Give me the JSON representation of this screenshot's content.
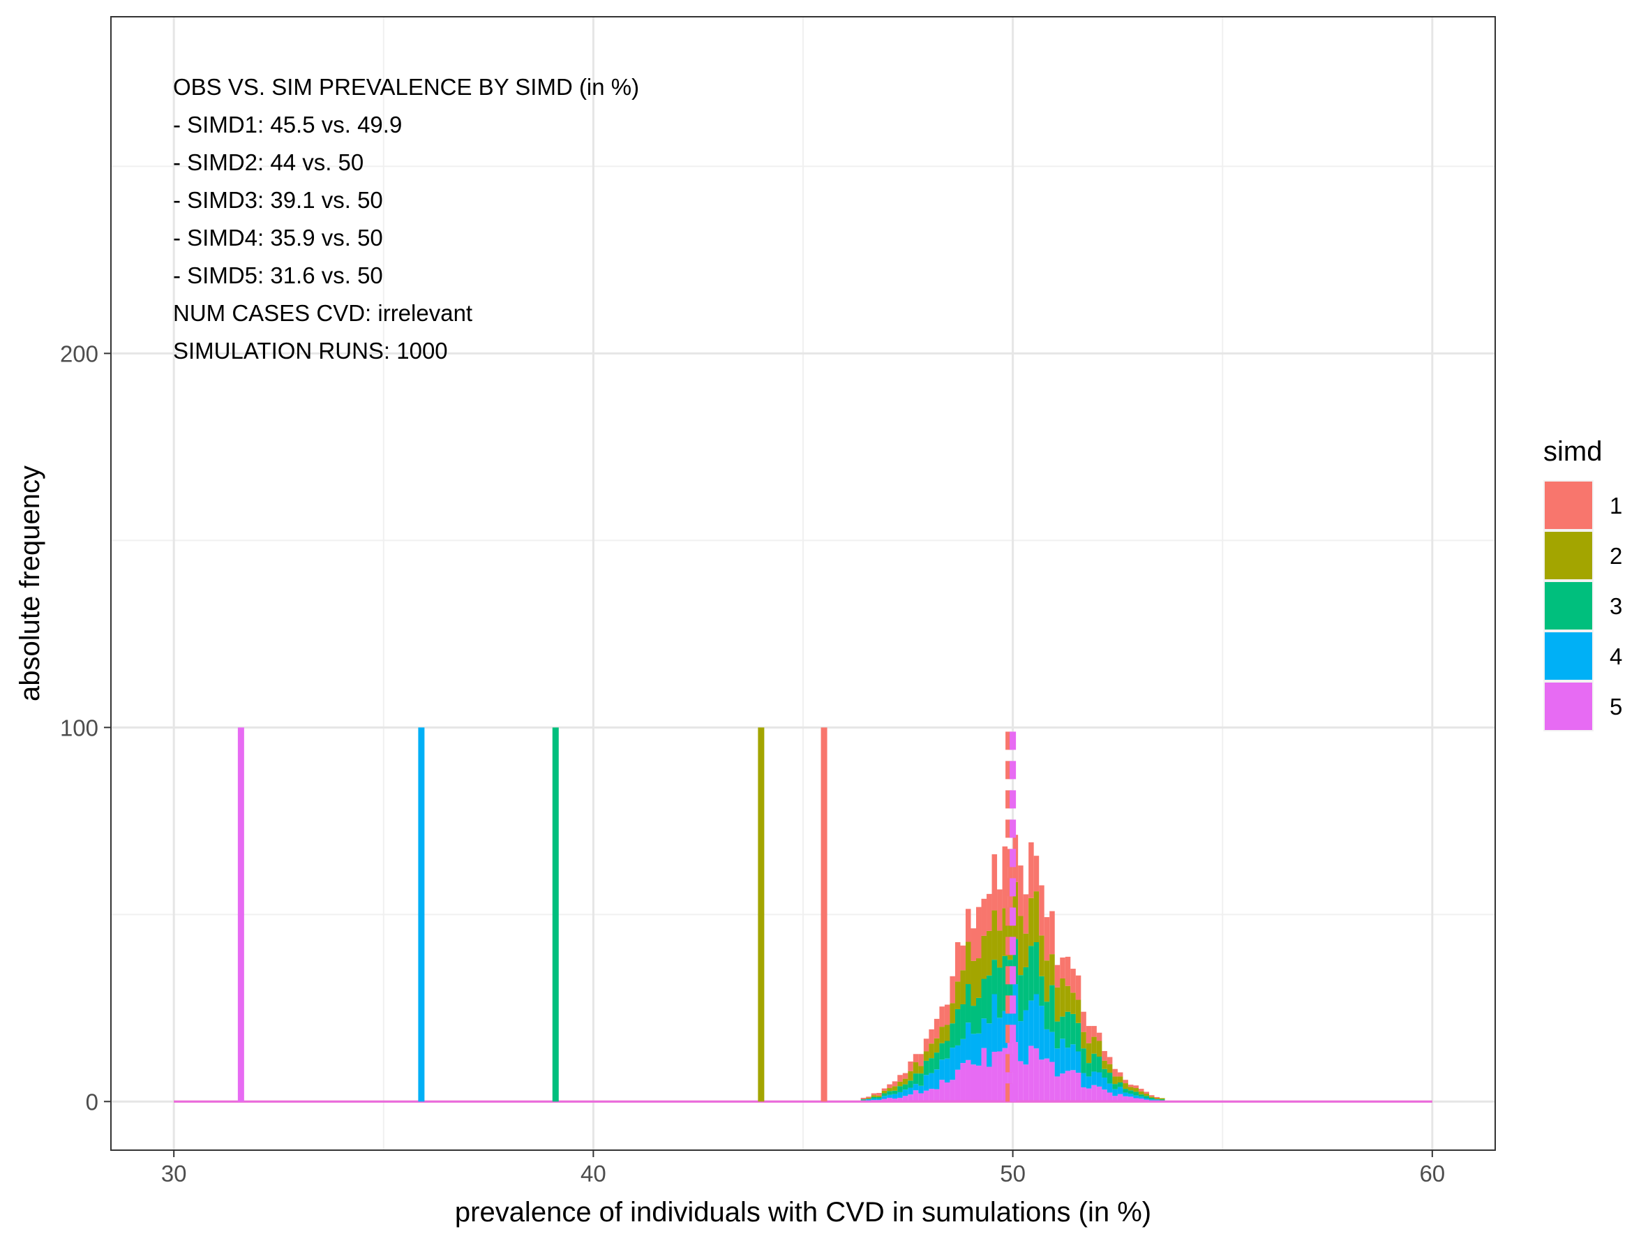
{
  "chart_data": {
    "type": "histogram",
    "xlabel": "prevalence of individuals with CVD in sumulations (in %)",
    "ylabel": "absolute frequency",
    "xlim": [
      28.5,
      61.5
    ],
    "ylim": [
      -13,
      290
    ],
    "x_ticks": [
      30,
      40,
      50,
      60
    ],
    "x_minor_ticks": [
      35,
      45,
      55
    ],
    "y_ticks": [
      0,
      100,
      200
    ],
    "y_minor_ticks": [
      50,
      150,
      250
    ],
    "grid": true,
    "stacked": true,
    "bin_width": 0.125,
    "bin_range": [
      30,
      60
    ],
    "annotations": [
      "OBS VS. SIM PREVALENCE BY SIMD (in %)",
      "- SIMD1: 45.5 vs. 49.9",
      "- SIMD2: 44 vs. 50",
      "- SIMD3: 39.1 vs. 50",
      "- SIMD4: 35.9 vs. 50",
      "- SIMD5: 31.6 vs. 50",
      "NUM CASES CVD: irrelevant",
      "SIMULATION RUNS: 1000"
    ],
    "legend": {
      "title": "simd",
      "position": "right",
      "entries": [
        {
          "label": "1",
          "color": "#F8766D"
        },
        {
          "label": "2",
          "color": "#A3A500"
        },
        {
          "label": "3",
          "color": "#00BF7D"
        },
        {
          "label": "4",
          "color": "#00B0F6"
        },
        {
          "label": "5",
          "color": "#E76BF3"
        }
      ]
    },
    "observed_lines": [
      {
        "series": "1",
        "x": 45.5,
        "y_top": 100,
        "linetype": "solid"
      },
      {
        "series": "2",
        "x": 44.0,
        "y_top": 100,
        "linetype": "solid"
      },
      {
        "series": "3",
        "x": 39.1,
        "y_top": 100,
        "linetype": "solid"
      },
      {
        "series": "4",
        "x": 35.9,
        "y_top": 100,
        "linetype": "solid"
      },
      {
        "series": "5",
        "x": 31.6,
        "y_top": 100,
        "linetype": "solid"
      }
    ],
    "simulated_mean_lines": [
      {
        "series": "1",
        "x": 49.9,
        "y_top": 100,
        "linetype": "dashed"
      },
      {
        "series": "5",
        "x": 50.0,
        "y_top": 100,
        "linetype": "dashed"
      }
    ],
    "series": [
      {
        "name": "1",
        "color": "#F8766D",
        "mean": 49.9,
        "sd": 1.25,
        "peak": 13
      },
      {
        "name": "2",
        "color": "#A3A500",
        "mean": 50.0,
        "sd": 1.25,
        "peak": 13
      },
      {
        "name": "3",
        "color": "#00BF7D",
        "mean": 50.0,
        "sd": 1.25,
        "peak": 13
      },
      {
        "name": "4",
        "color": "#00B0F6",
        "mean": 50.0,
        "sd": 1.25,
        "peak": 13
      },
      {
        "name": "5",
        "color": "#E76BF3",
        "mean": 50.0,
        "sd": 1.25,
        "peak": 13
      }
    ]
  }
}
